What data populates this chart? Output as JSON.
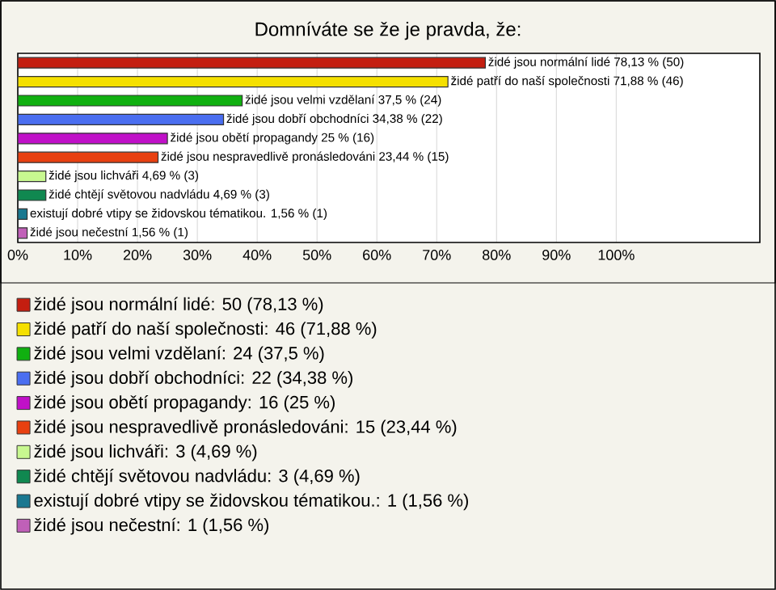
{
  "chart_data": {
    "type": "bar",
    "orientation": "horizontal",
    "title": "Domníváte se že je pravda, že:",
    "categories": [
      null,
      null,
      null,
      null,
      null,
      null,
      null,
      null,
      null,
      null
    ],
    "series": [
      {
        "name": "židé jsou normální lidé: 50 (78,13 %)",
        "color": "#c41e10",
        "values": [
          78.13,
          null,
          null,
          null,
          null,
          null,
          null,
          null,
          null,
          null
        ]
      },
      {
        "name": "židé patří do naší společnosti: 46 (71,88 %)",
        "color": "#f5e000",
        "values": [
          null,
          71.88,
          null,
          null,
          null,
          null,
          null,
          null,
          null,
          null
        ]
      },
      {
        "name": "židé jsou velmi vzdělaní: 24 (37,5 %)",
        "color": "#10b010",
        "values": [
          null,
          null,
          37.5,
          null,
          null,
          null,
          null,
          null,
          null,
          null
        ]
      },
      {
        "name": "židé jsou dobří obchodníci: 22 (34,38 %)",
        "color": "#4a6ef0",
        "values": [
          null,
          null,
          null,
          34.38,
          null,
          null,
          null,
          null,
          null,
          null
        ]
      },
      {
        "name": "židé jsou obětí propagandy: 16 (25 %)",
        "color": "#c010c8",
        "values": [
          null,
          null,
          null,
          null,
          25,
          null,
          null,
          null,
          null,
          null
        ]
      },
      {
        "name": "židé jsou nespravedlivě pronásledováni: 15 (23,44 %)",
        "color": "#e84010",
        "values": [
          null,
          null,
          null,
          null,
          null,
          23.44,
          null,
          null,
          null,
          null
        ]
      },
      {
        "name": "židé jsou lichváři: 3 (4,69 %)",
        "color": "#c8f890",
        "values": [
          null,
          null,
          null,
          null,
          null,
          null,
          4.69,
          null,
          null,
          null
        ]
      },
      {
        "name": "židé chtějí světovou nadvládu: 3 (4,69 %)",
        "color": "#108850",
        "values": [
          null,
          null,
          null,
          null,
          null,
          null,
          null,
          4.69,
          null,
          null
        ]
      },
      {
        "name": "existují dobré vtipy se židovskou tématikou.: 1 (1,56 %)",
        "color": "#1a7890",
        "values": [
          null,
          null,
          null,
          null,
          null,
          null,
          null,
          null,
          1.56,
          null
        ]
      },
      {
        "name": "židé jsou nečestní: 1 (1,56 %)",
        "color": "#c060b8",
        "values": [
          null,
          null,
          null,
          null,
          null,
          null,
          null,
          null,
          null,
          1.56
        ]
      }
    ],
    "annotations": [
      {
        "text": "židé jsou normální lidé 78,13 % (50)",
        "x": 78.13
      },
      {
        "text": "židé patří do naší společnosti 71,88 % (46)",
        "x": 71.88
      },
      {
        "text": "židé jsou velmi vzdělaní 37,5 % (24)",
        "x": 37.5
      },
      {
        "text": "židé jsou dobří obchodníci 34,38 % (22)",
        "x": 34.38
      },
      {
        "text": "židé jsou obětí propagandy 25 % (16)",
        "x": 25
      },
      {
        "text": "židé jsou nespravedlivě pronásledováni 23,44 % (15)",
        "x": 23.44
      },
      {
        "text": "židé jsou lichváři 4,69 % (3)",
        "x": 4.69
      },
      {
        "text": "židé chtějí světovou nadvládu 4,69 % (3)",
        "x": 4.69
      },
      {
        "text": "existují dobré vtipy se židovskou tématikou. 1,56 % (1)",
        "x": 1.56
      },
      {
        "text": "židé jsou nečestní 1,56 % (1)",
        "x": 1.56
      }
    ],
    "xlim": [
      0,
      124
    ],
    "xticks": [
      {
        "value": 0,
        "label": "0%"
      },
      {
        "value": 10,
        "label": "10%"
      },
      {
        "value": 20,
        "label": "20%"
      },
      {
        "value": 30,
        "label": "30%"
      },
      {
        "value": 40,
        "label": "40%"
      },
      {
        "value": 50,
        "label": "50%"
      },
      {
        "value": 60,
        "label": "60%"
      },
      {
        "value": 70,
        "label": "70%"
      },
      {
        "value": 80,
        "label": "80%"
      },
      {
        "value": 90,
        "label": "90%"
      },
      {
        "value": 100,
        "label": "100%"
      }
    ],
    "grid": "x",
    "legend": "bottom"
  }
}
